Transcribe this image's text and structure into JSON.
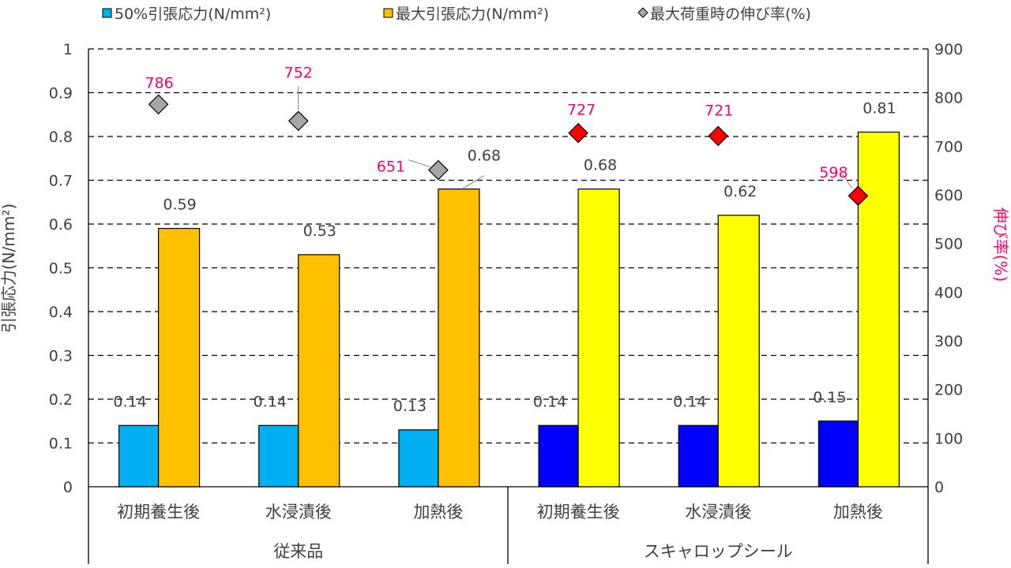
{
  "chart_data": {
    "type": "bar",
    "title": "",
    "legend": {
      "placement": "top",
      "entries": [
        "50%引張応力(N/mm²)",
        "最大引張応力(N/mm²)",
        "最大荷重時の伸び率(%)"
      ]
    },
    "categories": [
      "初期養生後",
      "水浸漬後",
      "加熱後",
      "初期養生後",
      "水浸漬後",
      "加熱後"
    ],
    "groups": [
      {
        "label": "従来品",
        "category_indices": [
          0,
          1,
          2
        ]
      },
      {
        "label": "スキャロップシール",
        "category_indices": [
          3,
          4,
          5
        ]
      }
    ],
    "series": [
      {
        "name": "50%引張応力(N/mm²)",
        "axis": "left",
        "kind": "bar",
        "values": [
          0.14,
          0.14,
          0.13,
          0.14,
          0.14,
          0.15
        ],
        "labels": [
          "0.14",
          "0.14",
          "0.13",
          "0.14",
          "0.14",
          "0.15"
        ],
        "colors": [
          "#00B0F0",
          "#00B0F0",
          "#00B0F0",
          "#0000FF",
          "#0000FF",
          "#0000FF"
        ]
      },
      {
        "name": "最大引張応力(N/mm²)",
        "axis": "left",
        "kind": "bar",
        "values": [
          0.59,
          0.53,
          0.68,
          0.68,
          0.62,
          0.81
        ],
        "labels": [
          "0.59",
          "0.53",
          "0.68",
          "0.68",
          "0.62",
          "0.81"
        ],
        "colors": [
          "#FFC000",
          "#FFC000",
          "#FFC000",
          "#FFFF00",
          "#FFFF00",
          "#FFFF00"
        ]
      },
      {
        "name": "最大荷重時の伸び率(%)",
        "axis": "right",
        "kind": "scatter",
        "marker": "diamond",
        "values": [
          786,
          752,
          651,
          727,
          721,
          598
        ],
        "labels": [
          "786",
          "752",
          "651",
          "727",
          "721",
          "598"
        ],
        "colors": [
          "#A6A6A6",
          "#A6A6A6",
          "#A6A6A6",
          "#FF0000",
          "#FF0000",
          "#FF0000"
        ]
      }
    ],
    "ylabel": "引張応力(N/mm²)",
    "ylim": [
      0,
      1
    ],
    "yticks": [
      "0",
      "0.1",
      "0.2",
      "0.3",
      "0.4",
      "0.5",
      "0.6",
      "0.7",
      "0.8",
      "0.9",
      "1"
    ],
    "y2label": "伸び率(%)",
    "y2lim": [
      0,
      900
    ],
    "y2ticks": [
      "0",
      "100",
      "200",
      "300",
      "400",
      "500",
      "600",
      "700",
      "800",
      "900"
    ],
    "grid": "horizontal dashed",
    "label_color": "#FF0066"
  }
}
